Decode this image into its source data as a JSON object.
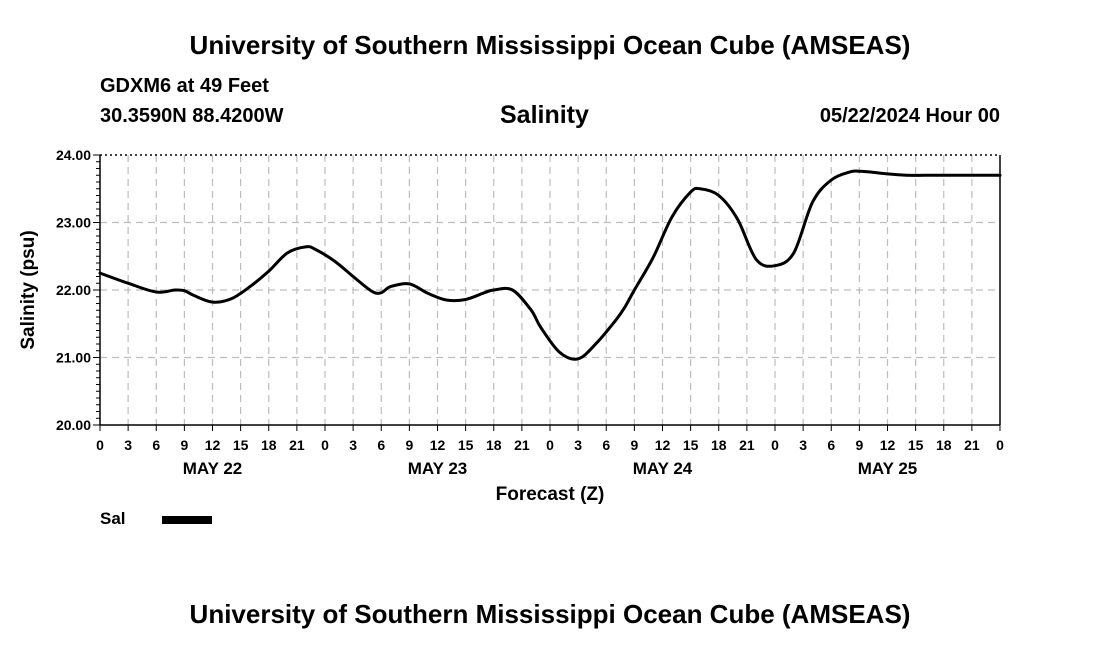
{
  "header": {
    "title": "University of Southern Mississippi Ocean Cube (AMSEAS)",
    "station": "GDXM6 at 49 Feet",
    "coordinates": "30.3590N  88.4200W",
    "run_time": "05/22/2024 Hour 00"
  },
  "footer": {
    "title": "University of Southern Mississippi Ocean Cube (AMSEAS)"
  },
  "legend": {
    "label": "Sal",
    "color": "#000000"
  },
  "chart_data": {
    "type": "line",
    "title": "Salinity",
    "xlabel": "Forecast (Z)",
    "ylabel": "Salinity (psu)",
    "xlim": [
      0,
      96
    ],
    "ylim": [
      20,
      24
    ],
    "y_ticks": [
      "20.00",
      "21.00",
      "22.00",
      "23.00",
      "24.00"
    ],
    "x_tick_labels": [
      "0",
      "3",
      "6",
      "9",
      "12",
      "15",
      "18",
      "21",
      "0",
      "3",
      "6",
      "9",
      "12",
      "15",
      "18",
      "21",
      "0",
      "3",
      "6",
      "9",
      "12",
      "15",
      "18",
      "21",
      "0",
      "3",
      "6",
      "9",
      "12",
      "15",
      "18",
      "21",
      "0"
    ],
    "day_labels": [
      {
        "label": "MAY 22",
        "hour": 12
      },
      {
        "label": "MAY 23",
        "hour": 36
      },
      {
        "label": "MAY 24",
        "hour": 60
      },
      {
        "label": "MAY 25",
        "hour": 84
      }
    ],
    "grid": true,
    "series": [
      {
        "name": "Sal",
        "color": "#000000",
        "x": [
          0,
          3,
          6,
          8,
          9,
          10,
          12,
          14,
          16,
          18,
          20,
          22,
          23,
          25,
          27,
          29,
          30,
          31,
          33,
          35,
          37,
          39,
          41,
          42,
          44,
          46,
          47,
          49,
          51,
          53,
          55,
          56,
          57,
          59,
          61,
          63,
          64,
          66,
          68,
          70,
          72,
          74,
          76,
          78,
          80,
          81,
          82,
          84,
          86,
          88,
          90,
          92,
          94,
          96
        ],
        "y": [
          22.25,
          22.1,
          21.97,
          22.0,
          21.99,
          21.92,
          21.82,
          21.87,
          22.05,
          22.28,
          22.55,
          22.64,
          22.6,
          22.43,
          22.2,
          21.98,
          21.96,
          22.05,
          22.09,
          21.95,
          21.85,
          21.86,
          21.96,
          22.0,
          22.0,
          21.7,
          21.45,
          21.08,
          20.98,
          21.22,
          21.55,
          21.75,
          22.0,
          22.48,
          23.08,
          23.45,
          23.5,
          23.4,
          23.05,
          22.45,
          22.36,
          22.55,
          23.3,
          23.63,
          23.75,
          23.76,
          23.75,
          23.72,
          23.7,
          23.7,
          23.7,
          23.7,
          23.7,
          23.7
        ]
      }
    ]
  }
}
